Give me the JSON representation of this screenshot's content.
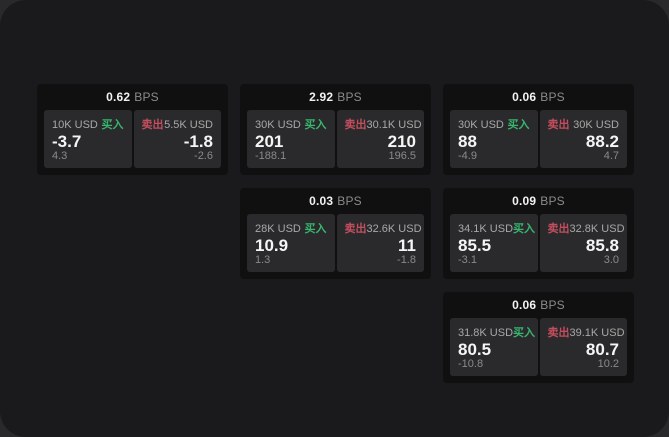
{
  "labels": {
    "buy": "买入",
    "sell": "卖出",
    "bps_unit": "BPS"
  },
  "colors": {
    "buy": "#38b56e",
    "sell": "#c24e5e",
    "window_bg": "#1a1a1c",
    "card_bg": "#101011",
    "panel_bg": "#2a2a2c"
  },
  "cards": [
    {
      "col": 1,
      "row": 1,
      "bps": "0.62",
      "buy": {
        "size": "10K USD",
        "value": "-3.7",
        "delta": "4.3"
      },
      "sell": {
        "size": "5.5K USD",
        "value": "-1.8",
        "delta": "-2.6"
      }
    },
    {
      "col": 2,
      "row": 1,
      "bps": "2.92",
      "buy": {
        "size": "30K USD",
        "value": "201",
        "delta": "-188.1"
      },
      "sell": {
        "size": "30.1K USD",
        "value": "210",
        "delta": "196.5"
      }
    },
    {
      "col": 3,
      "row": 1,
      "bps": "0.06",
      "buy": {
        "size": "30K USD",
        "value": "88",
        "delta": "-4.9"
      },
      "sell": {
        "size": "30K USD",
        "value": "88.2",
        "delta": "4.7"
      }
    },
    {
      "col": 2,
      "row": 2,
      "bps": "0.03",
      "buy": {
        "size": "28K USD",
        "value": "10.9",
        "delta": "1.3"
      },
      "sell": {
        "size": "32.6K USD",
        "value": "11",
        "delta": "-1.8"
      }
    },
    {
      "col": 3,
      "row": 2,
      "bps": "0.09",
      "buy": {
        "size": "34.1K USD",
        "value": "85.5",
        "delta": "-3.1"
      },
      "sell": {
        "size": "32.8K USD",
        "value": "85.8",
        "delta": "3.0"
      }
    },
    {
      "col": 3,
      "row": 3,
      "bps": "0.06",
      "buy": {
        "size": "31.8K USD",
        "value": "80.5",
        "delta": "-10.8"
      },
      "sell": {
        "size": "39.1K USD",
        "value": "80.7",
        "delta": "10.2"
      }
    }
  ]
}
